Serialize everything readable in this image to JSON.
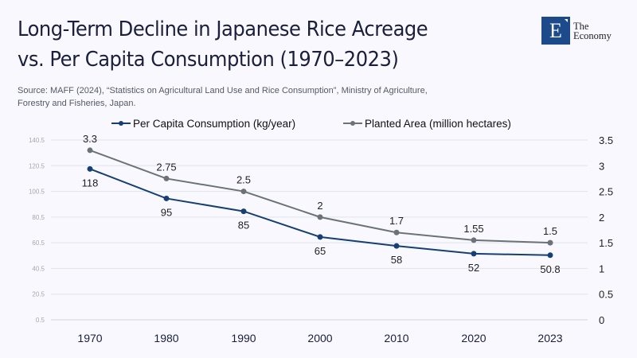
{
  "header": {
    "title_line1": "Long-Term Decline in Japanese Rice Acreage",
    "title_line2": "vs. Per Capita Consumption (1970–2023)",
    "source_line1": "Source:  MAFF (2024), “Statistics on Agricultural Land Use and Rice Consumption”, Ministry of Agriculture,",
    "source_line2": "Forestry and Fisheries, Japan."
  },
  "logo": {
    "mark": "E",
    "line1": "The",
    "line2": "Economy",
    "color": "#1d4a8a"
  },
  "chart_data": {
    "type": "line",
    "title": "Long-Term Decline in Japanese Rice Acreage vs. Per Capita Consumption (1970–2023)",
    "categories": [
      "1970",
      "1980",
      "1990",
      "2000",
      "2010",
      "2020",
      "2023"
    ],
    "series": [
      {
        "name": "Per Capita Consumption (kg/year)",
        "axis": "left",
        "color": "#163f73",
        "values": [
          118,
          95,
          85,
          65,
          58,
          52,
          50.8
        ],
        "labels": [
          "118",
          "95",
          "85",
          "65",
          "58",
          "52",
          "50.8"
        ],
        "label_position": "below"
      },
      {
        "name": "Planted Area (million hectares)",
        "axis": "right",
        "color": "#6b7378",
        "values": [
          3.3,
          2.75,
          2.5,
          2.0,
          1.7,
          1.55,
          1.5
        ],
        "labels": [
          "3.3",
          "2.75",
          "2.5",
          "2",
          "1.7",
          "1.55",
          "1.5"
        ],
        "label_position": "above"
      }
    ],
    "y_left": {
      "ticks": [
        "0.5",
        "20.5",
        "40.5",
        "60.5",
        "80.5",
        "100.5",
        "120.5",
        "140.5"
      ],
      "range": [
        0.5,
        140.5
      ]
    },
    "y_right": {
      "ticks": [
        "0",
        "0.5",
        "1",
        "1.5",
        "2",
        "2.5",
        "3",
        "3.5"
      ],
      "range": [
        0,
        3.5
      ]
    },
    "xlabel": "",
    "ylabel": "",
    "grid": true,
    "legend": "top-center"
  }
}
